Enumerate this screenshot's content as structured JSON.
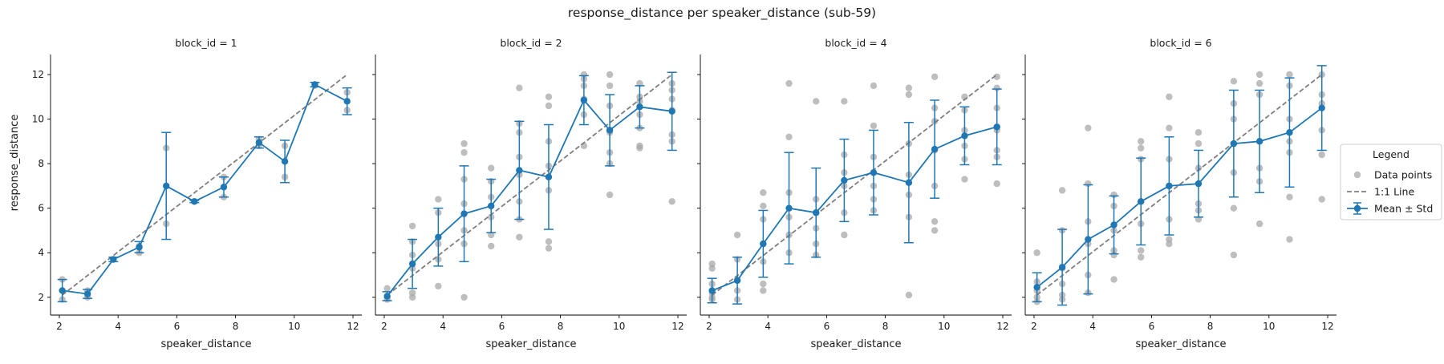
{
  "chart_data": {
    "type": "line",
    "title": "response_distance per speaker_distance (sub-59)",
    "xlabel": "speaker_distance",
    "ylabel": "response_distance",
    "xlim": [
      1.7,
      12.3
    ],
    "ylim": [
      1.2,
      12.9
    ],
    "xticks": [
      2,
      4,
      6,
      8,
      10,
      12
    ],
    "yticks": [
      2,
      4,
      6,
      8,
      10,
      12
    ],
    "grid": false,
    "legend": {
      "title": "Legend",
      "placement": "right",
      "items": [
        {
          "label": "Data points",
          "kind": "scatter"
        },
        {
          "label": "1:1 Line",
          "kind": "dashed"
        },
        {
          "label": "Mean ± Std",
          "kind": "errorbar"
        }
      ]
    },
    "colors": {
      "mean": "#1f77b4",
      "points": "#a8a8a8",
      "identity": "#7f7f7f"
    },
    "identity_line": [
      [
        2.1,
        2.1
      ],
      [
        11.8,
        12.0
      ]
    ],
    "panels": [
      {
        "title": "block_id = 1",
        "mean": {
          "x": [
            2.1,
            2.96,
            3.84,
            4.72,
            5.64,
            6.6,
            7.6,
            8.8,
            9.68,
            10.7,
            11.8
          ],
          "y": [
            2.3,
            2.15,
            3.7,
            4.25,
            7.0,
            6.3,
            6.95,
            8.95,
            8.1,
            11.55,
            10.8
          ],
          "std": [
            0.5,
            0.2,
            0.1,
            0.25,
            2.4,
            0.05,
            0.45,
            0.25,
            0.95,
            0.1,
            0.6
          ]
        },
        "points": [
          [
            2.1,
            1.9
          ],
          [
            2.1,
            2.8
          ],
          [
            2.96,
            2.0
          ],
          [
            2.96,
            2.3
          ],
          [
            3.84,
            3.7
          ],
          [
            4.72,
            4.0
          ],
          [
            4.72,
            4.3
          ],
          [
            5.64,
            8.7
          ],
          [
            5.64,
            5.3
          ],
          [
            6.6,
            6.3
          ],
          [
            7.6,
            7.4
          ],
          [
            7.6,
            6.5
          ],
          [
            8.8,
            9.1
          ],
          [
            8.8,
            8.8
          ],
          [
            9.68,
            8.8
          ],
          [
            9.68,
            7.4
          ],
          [
            10.7,
            11.5
          ],
          [
            11.8,
            11.2
          ],
          [
            11.8,
            10.4
          ]
        ]
      },
      {
        "title": "block_id = 2",
        "mean": {
          "x": [
            2.1,
            2.96,
            3.84,
            4.72,
            5.64,
            6.6,
            7.6,
            8.8,
            9.68,
            10.7,
            11.8
          ],
          "y": [
            2.05,
            3.5,
            4.7,
            5.75,
            6.1,
            7.7,
            7.4,
            10.85,
            9.5,
            10.55,
            10.35
          ],
          "std": [
            0.2,
            1.1,
            1.3,
            2.15,
            1.2,
            2.2,
            2.35,
            1.1,
            1.6,
            0.95,
            1.75
          ]
        },
        "points": [
          [
            2.1,
            2.4
          ],
          [
            2.1,
            1.9
          ],
          [
            2.1,
            2.0
          ],
          [
            2.96,
            5.2
          ],
          [
            2.96,
            4.5
          ],
          [
            2.96,
            3.9
          ],
          [
            2.96,
            3.3
          ],
          [
            2.96,
            2.0
          ],
          [
            2.96,
            2.2
          ],
          [
            3.84,
            6.4
          ],
          [
            3.84,
            5.8
          ],
          [
            3.84,
            4.4
          ],
          [
            3.84,
            3.7
          ],
          [
            3.84,
            2.5
          ],
          [
            4.72,
            8.9
          ],
          [
            4.72,
            8.5
          ],
          [
            4.72,
            7.3
          ],
          [
            4.72,
            6.2
          ],
          [
            4.72,
            5.0
          ],
          [
            4.72,
            4.4
          ],
          [
            4.72,
            2.0
          ],
          [
            5.64,
            7.8
          ],
          [
            5.64,
            7.2
          ],
          [
            5.64,
            6.5
          ],
          [
            5.64,
            5.6
          ],
          [
            5.64,
            4.8
          ],
          [
            5.64,
            4.3
          ],
          [
            6.6,
            11.4
          ],
          [
            6.6,
            9.8
          ],
          [
            6.6,
            9.4
          ],
          [
            6.6,
            8.3
          ],
          [
            6.6,
            7.5
          ],
          [
            6.6,
            6.3
          ],
          [
            6.6,
            5.5
          ],
          [
            6.6,
            4.7
          ],
          [
            7.6,
            11.0
          ],
          [
            7.6,
            10.6
          ],
          [
            7.6,
            9.0
          ],
          [
            7.6,
            7.9
          ],
          [
            7.6,
            6.8
          ],
          [
            7.6,
            4.5
          ],
          [
            7.6,
            4.2
          ],
          [
            8.8,
            12.0
          ],
          [
            8.8,
            11.8
          ],
          [
            8.8,
            11.5
          ],
          [
            8.8,
            10.9
          ],
          [
            8.8,
            10.2
          ],
          [
            8.8,
            8.8
          ],
          [
            9.68,
            12.0
          ],
          [
            9.68,
            11.5
          ],
          [
            9.68,
            10.6
          ],
          [
            9.68,
            9.4
          ],
          [
            9.68,
            8.5
          ],
          [
            9.68,
            8.0
          ],
          [
            9.68,
            6.6
          ],
          [
            10.7,
            11.6
          ],
          [
            10.7,
            11.0
          ],
          [
            10.7,
            10.8
          ],
          [
            10.7,
            10.2
          ],
          [
            10.7,
            9.6
          ],
          [
            10.7,
            8.8
          ],
          [
            10.7,
            8.7
          ],
          [
            11.8,
            11.6
          ],
          [
            11.8,
            11.3
          ],
          [
            11.8,
            10.9
          ],
          [
            11.8,
            10.4
          ],
          [
            11.8,
            9.3
          ],
          [
            11.8,
            9.0
          ],
          [
            11.8,
            6.3
          ]
        ]
      },
      {
        "title": "block_id = 4",
        "mean": {
          "x": [
            2.1,
            2.96,
            3.84,
            4.72,
            5.64,
            6.6,
            7.6,
            8.8,
            9.68,
            10.7,
            11.8
          ],
          "y": [
            2.3,
            2.75,
            4.4,
            6.0,
            5.8,
            7.25,
            7.6,
            7.15,
            8.65,
            9.25,
            9.65
          ],
          "std": [
            0.55,
            1.05,
            1.5,
            2.5,
            2.0,
            1.85,
            1.9,
            2.7,
            2.2,
            1.3,
            1.7
          ]
        },
        "points": [
          [
            2.1,
            3.5
          ],
          [
            2.1,
            3.3
          ],
          [
            2.1,
            2.6
          ],
          [
            2.1,
            2.2
          ],
          [
            2.1,
            2.0
          ],
          [
            2.1,
            1.9
          ],
          [
            2.96,
            4.8
          ],
          [
            2.96,
            3.7
          ],
          [
            2.96,
            2.8
          ],
          [
            2.96,
            2.3
          ],
          [
            2.96,
            1.9
          ],
          [
            3.84,
            6.7
          ],
          [
            3.84,
            6.1
          ],
          [
            3.84,
            5.5
          ],
          [
            3.84,
            4.4
          ],
          [
            3.84,
            3.6
          ],
          [
            3.84,
            2.6
          ],
          [
            3.84,
            2.3
          ],
          [
            4.72,
            11.6
          ],
          [
            4.72,
            9.2
          ],
          [
            4.72,
            6.7
          ],
          [
            4.72,
            5.6
          ],
          [
            4.72,
            4.8
          ],
          [
            4.72,
            4.0
          ],
          [
            5.64,
            10.8
          ],
          [
            5.64,
            6.4
          ],
          [
            5.64,
            5.8
          ],
          [
            5.64,
            5.1
          ],
          [
            5.64,
            4.4
          ],
          [
            5.64,
            3.9
          ],
          [
            6.6,
            10.8
          ],
          [
            6.6,
            8.4
          ],
          [
            6.6,
            7.6
          ],
          [
            6.6,
            7.0
          ],
          [
            6.6,
            5.8
          ],
          [
            6.6,
            4.8
          ],
          [
            7.6,
            11.5
          ],
          [
            7.6,
            9.7
          ],
          [
            7.6,
            8.3
          ],
          [
            7.6,
            7.0
          ],
          [
            7.6,
            6.4
          ],
          [
            7.6,
            5.9
          ],
          [
            8.8,
            11.4
          ],
          [
            8.8,
            11.1
          ],
          [
            8.8,
            8.9
          ],
          [
            8.8,
            7.5
          ],
          [
            8.8,
            6.6
          ],
          [
            8.8,
            5.6
          ],
          [
            8.8,
            2.1
          ],
          [
            9.68,
            11.9
          ],
          [
            9.68,
            10.5
          ],
          [
            9.68,
            9.9
          ],
          [
            9.68,
            8.6
          ],
          [
            9.68,
            7.0
          ],
          [
            9.68,
            5.4
          ],
          [
            9.68,
            5.0
          ],
          [
            10.7,
            11.0
          ],
          [
            10.7,
            10.4
          ],
          [
            10.7,
            9.5
          ],
          [
            10.7,
            8.8
          ],
          [
            10.7,
            8.2
          ],
          [
            10.7,
            7.3
          ],
          [
            11.8,
            11.9
          ],
          [
            11.8,
            11.4
          ],
          [
            11.8,
            10.5
          ],
          [
            11.8,
            9.5
          ],
          [
            11.8,
            8.6
          ],
          [
            11.8,
            8.3
          ],
          [
            11.8,
            7.1
          ]
        ]
      },
      {
        "title": "block_id = 6",
        "mean": {
          "x": [
            2.1,
            2.96,
            3.84,
            4.72,
            5.64,
            6.6,
            7.6,
            8.8,
            9.68,
            10.7,
            11.8
          ],
          "y": [
            2.45,
            3.35,
            4.6,
            5.25,
            6.3,
            7.0,
            7.1,
            8.9,
            9.0,
            9.4,
            10.5
          ],
          "std": [
            0.65,
            1.7,
            2.45,
            1.3,
            1.95,
            2.2,
            1.5,
            2.4,
            2.3,
            2.45,
            1.9
          ]
        },
        "points": [
          [
            2.1,
            4.0
          ],
          [
            2.1,
            2.7
          ],
          [
            2.1,
            2.3
          ],
          [
            2.1,
            2.0
          ],
          [
            2.1,
            1.8
          ],
          [
            2.96,
            6.8
          ],
          [
            2.96,
            5.0
          ],
          [
            2.96,
            3.3
          ],
          [
            2.96,
            2.6
          ],
          [
            2.96,
            2.1
          ],
          [
            2.96,
            1.9
          ],
          [
            3.84,
            9.6
          ],
          [
            3.84,
            7.1
          ],
          [
            3.84,
            5.4
          ],
          [
            3.84,
            4.4
          ],
          [
            3.84,
            3.0
          ],
          [
            3.84,
            2.2
          ],
          [
            4.72,
            6.6
          ],
          [
            4.72,
            6.1
          ],
          [
            4.72,
            5.0
          ],
          [
            4.72,
            4.1
          ],
          [
            4.72,
            3.9
          ],
          [
            4.72,
            2.8
          ],
          [
            5.64,
            9.0
          ],
          [
            5.64,
            8.7
          ],
          [
            5.64,
            8.2
          ],
          [
            5.64,
            6.3
          ],
          [
            5.64,
            5.3
          ],
          [
            5.64,
            4.1
          ],
          [
            5.64,
            3.8
          ],
          [
            6.6,
            11.0
          ],
          [
            6.6,
            9.6
          ],
          [
            6.6,
            8.2
          ],
          [
            6.6,
            7.0
          ],
          [
            6.6,
            5.5
          ],
          [
            6.6,
            4.6
          ],
          [
            6.6,
            4.4
          ],
          [
            7.6,
            9.4
          ],
          [
            7.6,
            8.9
          ],
          [
            7.6,
            7.8
          ],
          [
            7.6,
            6.2
          ],
          [
            7.6,
            5.9
          ],
          [
            7.6,
            5.5
          ],
          [
            8.8,
            11.7
          ],
          [
            8.8,
            10.7
          ],
          [
            8.8,
            10.0
          ],
          [
            8.8,
            8.9
          ],
          [
            8.8,
            7.6
          ],
          [
            8.8,
            6.0
          ],
          [
            8.8,
            3.9
          ],
          [
            9.68,
            12.0
          ],
          [
            9.68,
            11.6
          ],
          [
            9.68,
            11.1
          ],
          [
            9.68,
            9.0
          ],
          [
            9.68,
            7.8
          ],
          [
            9.68,
            7.2
          ],
          [
            9.68,
            5.3
          ],
          [
            10.7,
            12.0
          ],
          [
            10.7,
            11.5
          ],
          [
            10.7,
            10.0
          ],
          [
            10.7,
            9.0
          ],
          [
            10.7,
            8.5
          ],
          [
            10.7,
            6.5
          ],
          [
            10.7,
            4.6
          ],
          [
            11.8,
            12.0
          ],
          [
            11.8,
            11.1
          ],
          [
            11.8,
            10.7
          ],
          [
            11.8,
            9.5
          ],
          [
            11.8,
            8.4
          ],
          [
            11.8,
            6.4
          ]
        ]
      }
    ]
  }
}
